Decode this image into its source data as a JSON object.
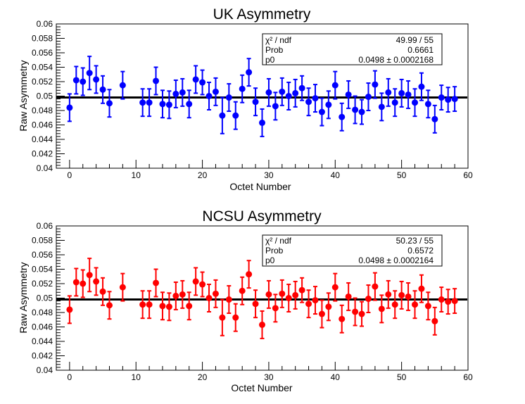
{
  "chart_data": [
    {
      "type": "scatter",
      "title": "UK Asymmetry",
      "xlabel": "Octet Number",
      "ylabel": "Raw Asymmetry",
      "xlim": [
        -2,
        60
      ],
      "ylim": [
        0.04,
        0.06
      ],
      "xticks": [
        "0",
        "10",
        "20",
        "30",
        "40",
        "50",
        "60"
      ],
      "yticks": [
        "0.04",
        "0.042",
        "0.044",
        "0.046",
        "0.048",
        "0.05",
        "0.052",
        "0.054",
        "0.056",
        "0.058",
        "0.06"
      ],
      "marker_color": "#0000ff",
      "fit_line": {
        "value": 0.0498,
        "color": "#000000"
      },
      "stats": [
        {
          "label": "χ² / ndf",
          "value": "49.99 / 55"
        },
        {
          "label": "Prob",
          "value": "0.6661"
        },
        {
          "label": "p0",
          "value": "0.0498 ± 0.0002168"
        }
      ],
      "x": [
        0,
        1,
        2,
        3,
        4,
        5,
        6,
        8,
        11,
        12,
        13,
        14,
        15,
        16,
        17,
        18,
        19,
        20,
        21,
        22,
        23,
        24,
        25,
        26,
        27,
        28,
        29,
        30,
        31,
        32,
        33,
        34,
        35,
        36,
        37,
        38,
        39,
        40,
        41,
        42,
        43,
        44,
        45,
        46,
        47,
        48,
        49,
        50,
        51,
        52,
        53,
        54,
        55,
        56,
        57,
        58
      ],
      "y": [
        0.0484,
        0.0522,
        0.052,
        0.0532,
        0.0523,
        0.0509,
        0.049,
        0.0515,
        0.0491,
        0.0491,
        0.0521,
        0.0489,
        0.0488,
        0.0503,
        0.0505,
        0.0489,
        0.0523,
        0.0519,
        0.05,
        0.0506,
        0.0473,
        0.0498,
        0.0473,
        0.051,
        0.0533,
        0.0492,
        0.0463,
        0.0505,
        0.0486,
        0.0506,
        0.05,
        0.0504,
        0.0511,
        0.0492,
        0.0497,
        0.0478,
        0.0488,
        0.0515,
        0.0471,
        0.0502,
        0.0481,
        0.0478,
        0.0499,
        0.0516,
        0.0485,
        0.0505,
        0.0491,
        0.0504,
        0.0502,
        0.0491,
        0.0513,
        0.0489,
        0.0468,
        0.0498,
        0.0495,
        0.0496
      ],
      "err": [
        0.0019,
        0.0019,
        0.0019,
        0.0023,
        0.0019,
        0.0019,
        0.0019,
        0.0019,
        0.0019,
        0.0019,
        0.0019,
        0.0019,
        0.0019,
        0.0019,
        0.0019,
        0.0019,
        0.0019,
        0.0017,
        0.0019,
        0.0019,
        0.0025,
        0.0019,
        0.0019,
        0.0019,
        0.0019,
        0.0019,
        0.0019,
        0.0019,
        0.0019,
        0.0019,
        0.0019,
        0.0019,
        0.0017,
        0.0019,
        0.0019,
        0.0019,
        0.0019,
        0.0019,
        0.0019,
        0.0019,
        0.0019,
        0.0017,
        0.0019,
        0.0019,
        0.0019,
        0.0019,
        0.0019,
        0.0019,
        0.0019,
        0.0019,
        0.0019,
        0.0019,
        0.0019,
        0.0017,
        0.0017,
        0.0017
      ]
    },
    {
      "type": "scatter",
      "title": "NCSU Asymmetry",
      "xlabel": "Octet Number",
      "ylabel": "Raw Asymmetry",
      "xlim": [
        -2,
        60
      ],
      "ylim": [
        0.04,
        0.06
      ],
      "xticks": [
        "0",
        "10",
        "20",
        "30",
        "40",
        "50",
        "60"
      ],
      "yticks": [
        "0.04",
        "0.042",
        "0.044",
        "0.046",
        "0.048",
        "0.05",
        "0.052",
        "0.054",
        "0.056",
        "0.058",
        "0.06"
      ],
      "marker_color": "#ff0000",
      "fit_line": {
        "value": 0.0498,
        "color": "#000000"
      },
      "stats": [
        {
          "label": "χ² / ndf",
          "value": "50.23 / 55"
        },
        {
          "label": "Prob",
          "value": "0.6572"
        },
        {
          "label": "p0",
          "value": "0.0498 ± 0.0002164"
        }
      ],
      "x": [
        0,
        1,
        2,
        3,
        4,
        5,
        6,
        8,
        11,
        12,
        13,
        14,
        15,
        16,
        17,
        18,
        19,
        20,
        21,
        22,
        23,
        24,
        25,
        26,
        27,
        28,
        29,
        30,
        31,
        32,
        33,
        34,
        35,
        36,
        37,
        38,
        39,
        40,
        41,
        42,
        43,
        44,
        45,
        46,
        47,
        48,
        49,
        50,
        51,
        52,
        53,
        54,
        55,
        56,
        57,
        58
      ],
      "y": [
        0.0484,
        0.0522,
        0.052,
        0.0532,
        0.0523,
        0.0509,
        0.049,
        0.0515,
        0.0491,
        0.0491,
        0.0521,
        0.0489,
        0.0488,
        0.0503,
        0.0505,
        0.0489,
        0.0523,
        0.0519,
        0.05,
        0.0506,
        0.0473,
        0.0498,
        0.0473,
        0.051,
        0.0533,
        0.0492,
        0.0463,
        0.0505,
        0.0486,
        0.0506,
        0.05,
        0.0504,
        0.0511,
        0.0492,
        0.0497,
        0.0478,
        0.0488,
        0.0515,
        0.0471,
        0.0502,
        0.0481,
        0.0478,
        0.0499,
        0.0516,
        0.0485,
        0.0505,
        0.0491,
        0.0504,
        0.0502,
        0.0491,
        0.0513,
        0.0489,
        0.0468,
        0.0498,
        0.0495,
        0.0496
      ],
      "err": [
        0.0019,
        0.0019,
        0.0019,
        0.0023,
        0.0019,
        0.0019,
        0.0019,
        0.0019,
        0.0019,
        0.0019,
        0.0019,
        0.0019,
        0.0019,
        0.0019,
        0.0019,
        0.0019,
        0.0019,
        0.0017,
        0.0019,
        0.0019,
        0.0025,
        0.0019,
        0.0019,
        0.0019,
        0.0019,
        0.0019,
        0.0019,
        0.0019,
        0.0019,
        0.0019,
        0.0019,
        0.0019,
        0.0017,
        0.0019,
        0.0019,
        0.0019,
        0.0019,
        0.0019,
        0.0019,
        0.0019,
        0.0019,
        0.0017,
        0.0019,
        0.0019,
        0.0019,
        0.0019,
        0.0019,
        0.0019,
        0.0019,
        0.0019,
        0.0019,
        0.0019,
        0.0019,
        0.0017,
        0.0017,
        0.0017
      ]
    }
  ]
}
